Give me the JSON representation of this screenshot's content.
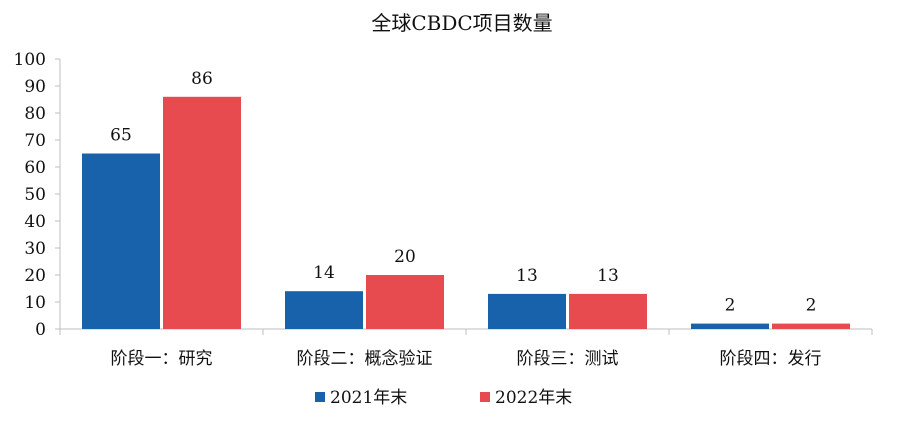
{
  "chart_data": {
    "type": "bar",
    "title": "全球CBDC项目数量",
    "xlabel": "",
    "ylabel": "",
    "categories": [
      "阶段一：研究",
      "阶段二：概念验证",
      "阶段三：测试",
      "阶段四：发行"
    ],
    "series": [
      {
        "name": "2021年末",
        "values": [
          65,
          14,
          13,
          2
        ],
        "color": "#1762aa"
      },
      {
        "name": "2022年末",
        "values": [
          86,
          20,
          13,
          2
        ],
        "color": "#e84b4f"
      }
    ],
    "ylim": [
      0,
      100
    ],
    "yticks": [
      "0",
      "10",
      "20",
      "30",
      "40",
      "50",
      "60",
      "70",
      "80",
      "90",
      "100"
    ],
    "grid": false,
    "legend_position": "bottom",
    "data_labels": true
  }
}
